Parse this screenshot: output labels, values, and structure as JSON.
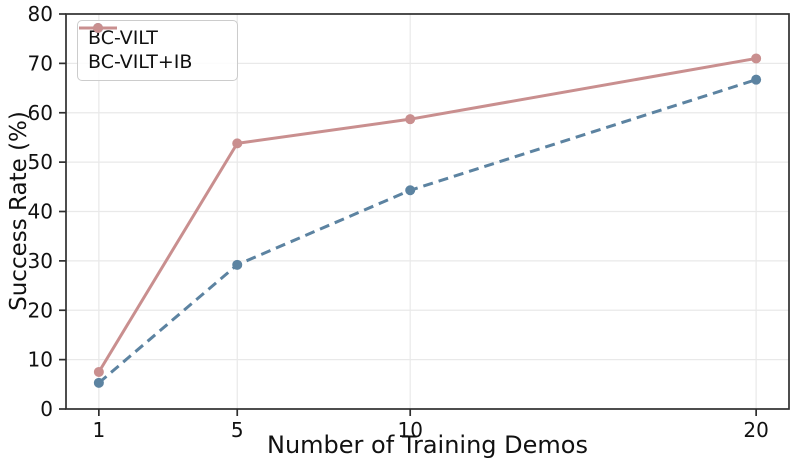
{
  "chart_data": {
    "type": "line",
    "title": "",
    "xlabel": "Number of Training Demos",
    "ylabel": "Success Rate (%)",
    "x": [
      1,
      5,
      10,
      20
    ],
    "xticks": [
      1,
      5,
      10,
      20
    ],
    "yticks": [
      0,
      10,
      20,
      30,
      40,
      50,
      60,
      70,
      80
    ],
    "xlim": [
      0.05,
      20.95
    ],
    "ylim": [
      0,
      80
    ],
    "grid": true,
    "legend_position": "upper-left",
    "series": [
      {
        "name": "BC-VILT",
        "values": [
          5.3,
          29.2,
          44.3,
          66.7
        ],
        "color": "#5c83a1",
        "style": "dashed",
        "marker": "circle"
      },
      {
        "name": "BC-VILT+IB",
        "values": [
          7.5,
          53.8,
          58.7,
          71.0
        ],
        "color": "#c98f8f",
        "style": "solid",
        "marker": "circle"
      }
    ]
  },
  "colors": {
    "grid": "#e9e9e9",
    "spine": "#2f2f2f",
    "text": "#111111",
    "legend_border": "#cccccc"
  }
}
